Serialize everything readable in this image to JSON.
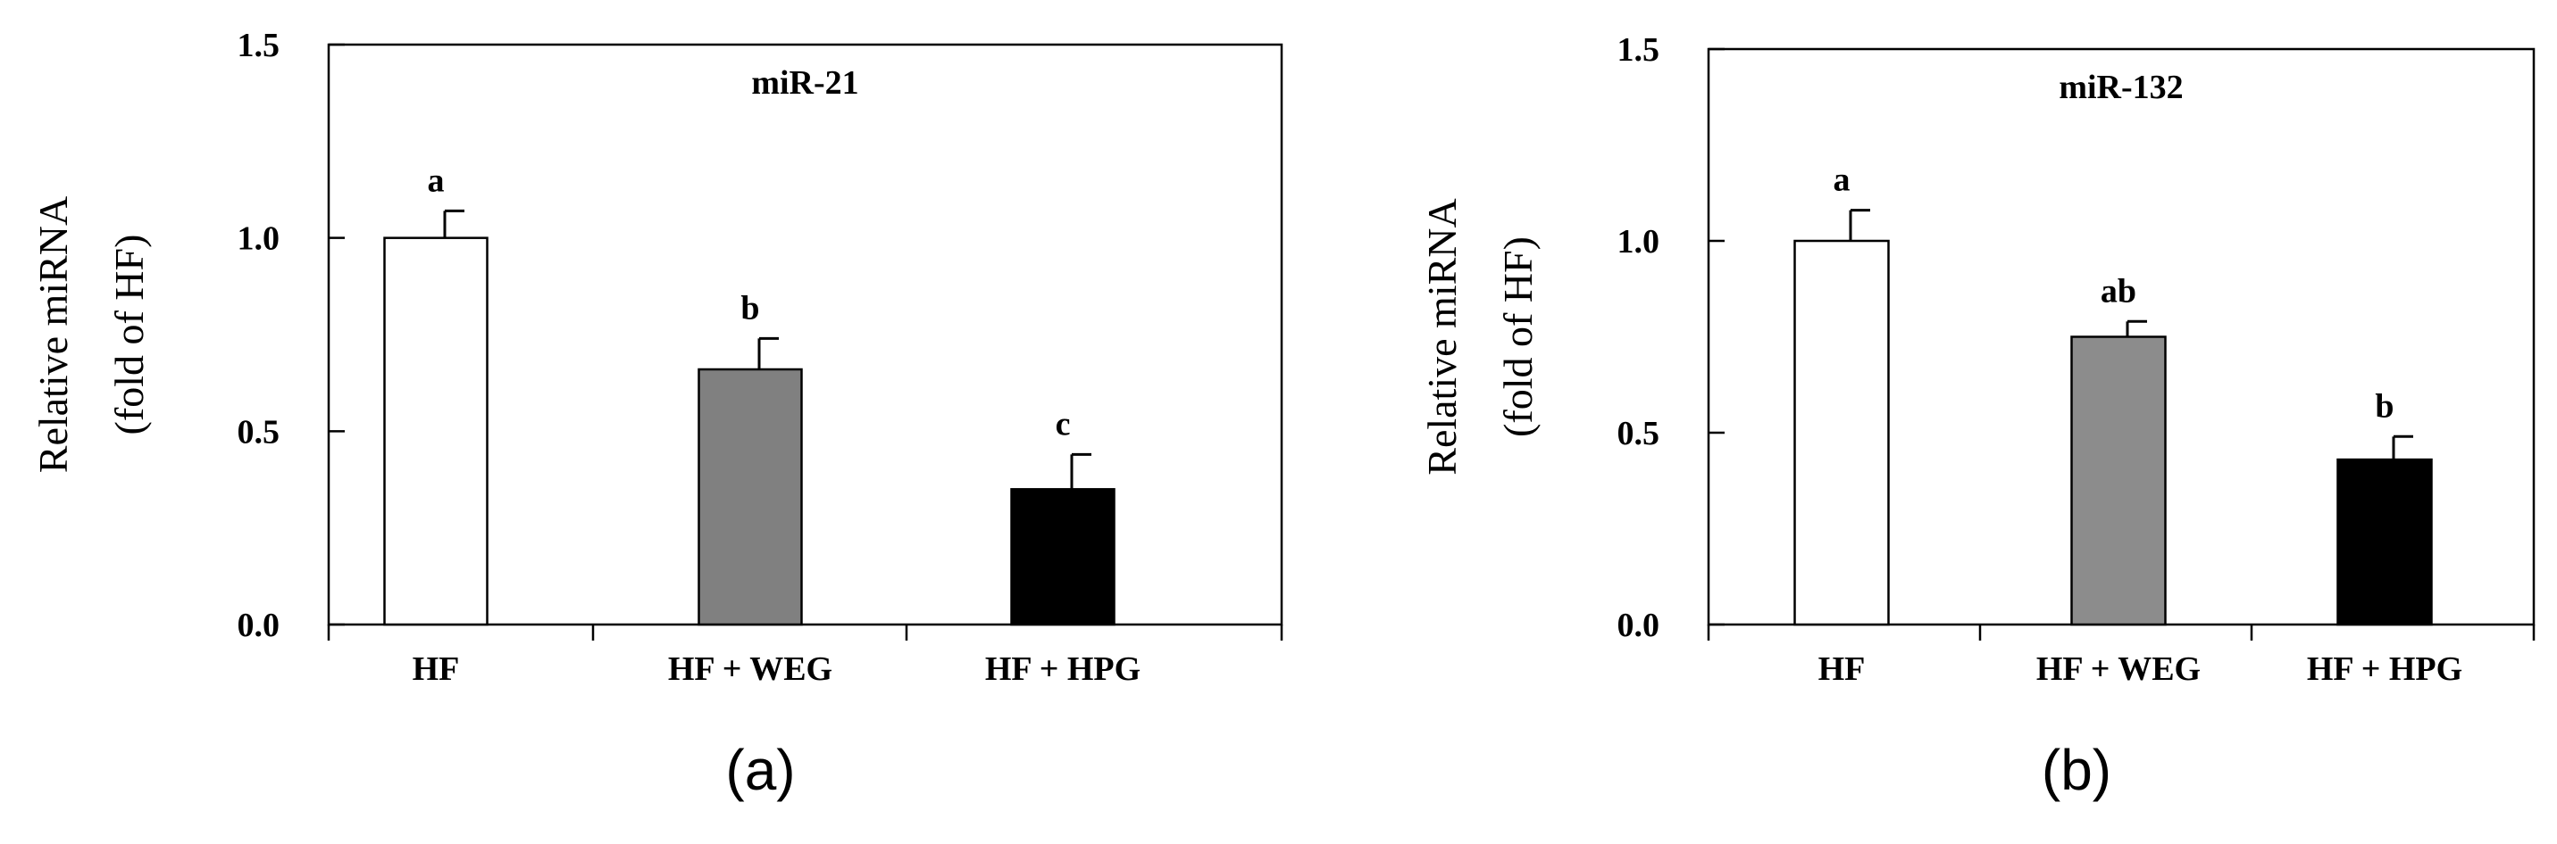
{
  "chart_data": [
    {
      "panel_label": "(a)",
      "type": "bar",
      "title": "miR-21",
      "ylabel": [
        "Relative miRNA",
        "(fold of HF)"
      ],
      "ylim": [
        0,
        1.5
      ],
      "yticks": [
        "0.0",
        "0.5",
        "1.0",
        "1.5"
      ],
      "ytick_values": [
        0,
        0.5,
        1.0,
        1.5
      ],
      "categories": [
        "HF",
        "HF + WEG",
        "HF + HPG"
      ],
      "values": [
        1.0,
        0.66,
        0.35
      ],
      "errors": [
        0.07,
        0.08,
        0.09
      ],
      "significance": [
        "a",
        "b",
        "c"
      ],
      "colors": [
        "#ffffff",
        "#808080",
        "#000000"
      ],
      "grid": false
    },
    {
      "panel_label": "(b)",
      "type": "bar",
      "title": "miR-132",
      "ylabel": [
        "Relative miRNA",
        "(fold of HF)"
      ],
      "ylim": [
        0,
        1.5
      ],
      "yticks": [
        "0.0",
        "0.5",
        "1.0",
        "1.5"
      ],
      "ytick_values": [
        0,
        0.5,
        1.0,
        1.5
      ],
      "categories": [
        "HF",
        "HF + WEG",
        "HF + HPG"
      ],
      "values": [
        1.0,
        0.75,
        0.43
      ],
      "errors": [
        0.08,
        0.04,
        0.06
      ],
      "significance": [
        "a",
        "ab",
        "b"
      ],
      "colors": [
        "#ffffff",
        "#8c8c8c",
        "#000000"
      ],
      "grid": false
    }
  ]
}
